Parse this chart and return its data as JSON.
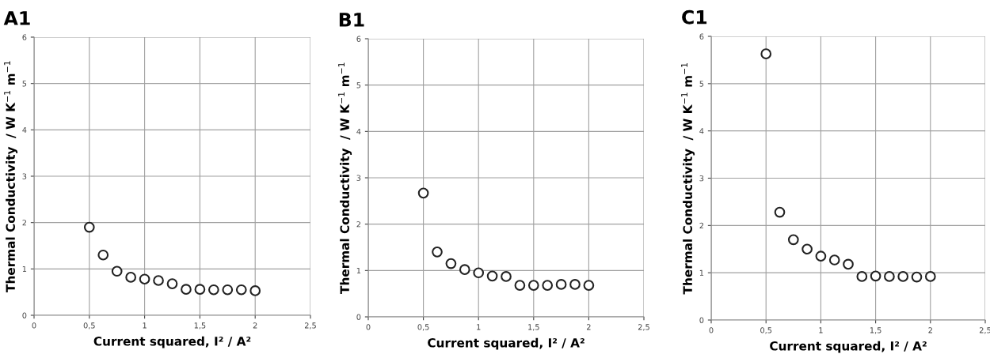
{
  "chart_data": [
    {
      "type": "scatter",
      "title": "A1",
      "xlabel": "Current squared, I² / A²",
      "ylabel": "Thermal Conductivity  / W K$^{−1}$ m$^{−1}$",
      "x": [
        0.5,
        0.625,
        0.75,
        0.875,
        1,
        1.125,
        1.25,
        1.375,
        1.5,
        1.625,
        1.75,
        1.875,
        2
      ],
      "series": [
        {
          "color": "#ffffff",
          "values": [
            1.9,
            1.3,
            0.95,
            0.82,
            0.78,
            0.75,
            0.68,
            0.56,
            0.56,
            0.55,
            0.55,
            0.55,
            0.53
          ]
        }
      ],
      "xlim": [
        0,
        2.5
      ],
      "xticks": [
        0,
        {
          "value": 0.5,
          "label": "0,5"
        },
        1,
        {
          "value": 1.5,
          "label": "1,5"
        },
        2,
        {
          "value": 2.5,
          "label": "2,5"
        }
      ],
      "ylim": [
        0,
        6
      ],
      "yticks": [
        0,
        1,
        2,
        3,
        4,
        5,
        6
      ],
      "grid": true,
      "marker": "circle"
    },
    {
      "type": "scatter",
      "title": "B1",
      "xlabel": "Current squared, I² / A²",
      "ylabel": "Thermal Conductivity  / W K$^{−1}$ m$^{−1}$",
      "x": [
        0.5,
        0.625,
        0.75,
        0.875,
        1,
        1.125,
        1.25,
        1.375,
        1.5,
        1.625,
        1.75,
        1.875,
        2
      ],
      "series": [
        {
          "color": "#ffffff",
          "values": [
            2.67,
            1.4,
            1.15,
            1.02,
            0.95,
            0.88,
            0.87,
            0.68,
            0.68,
            0.68,
            0.7,
            0.7,
            0.68
          ]
        }
      ],
      "xlim": [
        0,
        2.5
      ],
      "xticks": [
        0,
        {
          "value": 0.5,
          "label": "0,5"
        },
        1,
        {
          "value": 1.5,
          "label": "1,5"
        },
        2,
        {
          "value": 2.5,
          "label": "2,5"
        }
      ],
      "ylim": [
        0,
        6
      ],
      "yticks": [
        0,
        1,
        2,
        3,
        4,
        5,
        6
      ],
      "grid": true,
      "marker": "circle"
    },
    {
      "type": "scatter",
      "title": "C1",
      "xlabel": "Current squared, I² / A²",
      "ylabel": "Thermal Conductivity  / W K$^{−1}$ m$^{−1}$",
      "x": [
        0.5,
        0.625,
        0.75,
        0.875,
        1,
        1.125,
        1.25,
        1.375,
        1.5,
        1.625,
        1.75,
        1.875,
        2
      ],
      "series": [
        {
          "color": "#ffffff",
          "values": [
            5.63,
            2.28,
            1.7,
            1.5,
            1.35,
            1.27,
            1.18,
            0.92,
            0.93,
            0.92,
            0.92,
            0.91,
            0.92
          ]
        }
      ],
      "xlim": [
        0,
        2.5
      ],
      "xticks": [
        0,
        {
          "value": 0.5,
          "label": "0,5"
        },
        1,
        {
          "value": 1.5,
          "label": "1,5"
        },
        2,
        {
          "value": 2.5,
          "label": "2,5"
        }
      ],
      "ylim": [
        0,
        6
      ],
      "yticks": [
        0,
        1,
        2,
        3,
        4,
        5,
        6
      ],
      "grid": true,
      "marker": "circle"
    }
  ]
}
